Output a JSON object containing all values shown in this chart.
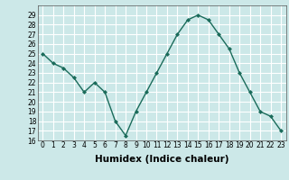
{
  "x": [
    0,
    1,
    2,
    3,
    4,
    5,
    6,
    7,
    8,
    9,
    10,
    11,
    12,
    13,
    14,
    15,
    16,
    17,
    18,
    19,
    20,
    21,
    22,
    23
  ],
  "y": [
    25,
    24,
    23.5,
    22.5,
    21,
    22,
    21,
    18,
    16.5,
    19,
    21,
    23,
    25,
    27,
    28.5,
    29,
    28.5,
    27,
    25.5,
    23,
    21,
    19,
    18.5,
    17
  ],
  "line_color": "#1a6b5a",
  "marker_color": "#1a6b5a",
  "bg_color": "#cce8e8",
  "grid_color": "#ffffff",
  "xlabel": "Humidex (Indice chaleur)",
  "ylim": [
    16,
    30
  ],
  "xlim": [
    -0.5,
    23.5
  ],
  "yticks": [
    16,
    17,
    18,
    19,
    20,
    21,
    22,
    23,
    24,
    25,
    26,
    27,
    28,
    29
  ],
  "xticks": [
    0,
    1,
    2,
    3,
    4,
    5,
    6,
    7,
    8,
    9,
    10,
    11,
    12,
    13,
    14,
    15,
    16,
    17,
    18,
    19,
    20,
    21,
    22,
    23
  ],
  "tick_fontsize": 5.5,
  "xlabel_fontsize": 7.5,
  "xlabel_fontweight": "bold"
}
